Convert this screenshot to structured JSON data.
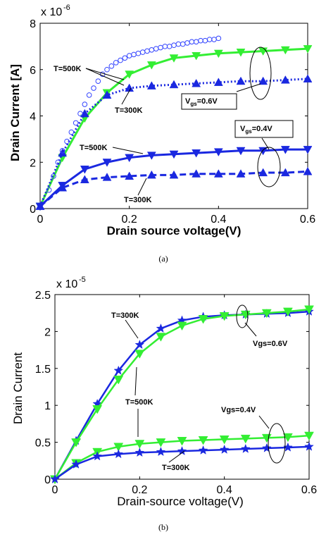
{
  "colors": {
    "green": "#33ee33",
    "blue": "#1a28e0",
    "circle_blue": "#3344ff"
  },
  "chart_data": [
    {
      "type": "line",
      "caption": "(a)",
      "xlabel": "Drain source voltage(V)",
      "ylabel": "Drain Current [A]",
      "y_multiplier": "x 10",
      "y_exponent": "-6",
      "xlim": [
        0,
        0.6
      ],
      "ylim": [
        0,
        8
      ],
      "xticks": [
        "0",
        "0.2",
        "0.4",
        "0.6"
      ],
      "yticks": [
        "0",
        "2",
        "4",
        "6",
        "8"
      ],
      "series": [
        {
          "color": "green",
          "style": "solid",
          "marker": "triangle-down",
          "x": [
            0,
            0.05,
            0.1,
            0.15,
            0.2,
            0.25,
            0.3,
            0.35,
            0.4,
            0.45,
            0.5,
            0.55,
            0.6
          ],
          "y": [
            0.1,
            2.2,
            3.9,
            5.0,
            5.8,
            6.2,
            6.5,
            6.6,
            6.7,
            6.75,
            6.8,
            6.85,
            6.9
          ]
        },
        {
          "color": "blue",
          "style": "dotted",
          "marker": "triangle-up",
          "x": [
            0,
            0.05,
            0.1,
            0.15,
            0.2,
            0.25,
            0.3,
            0.35,
            0.4,
            0.45,
            0.5,
            0.55,
            0.6
          ],
          "y": [
            0.1,
            2.4,
            4.1,
            4.9,
            5.2,
            5.3,
            5.35,
            5.4,
            5.45,
            5.5,
            5.5,
            5.55,
            5.6
          ]
        },
        {
          "color": "blue",
          "style": "solid",
          "marker": "triangle-down",
          "x": [
            0,
            0.05,
            0.1,
            0.15,
            0.2,
            0.25,
            0.3,
            0.35,
            0.4,
            0.45,
            0.5,
            0.55,
            0.6
          ],
          "y": [
            0.1,
            1.0,
            1.7,
            2.0,
            2.2,
            2.3,
            2.35,
            2.4,
            2.45,
            2.5,
            2.5,
            2.55,
            2.55
          ]
        },
        {
          "color": "blue",
          "style": "dashed",
          "marker": "triangle-up",
          "x": [
            0,
            0.05,
            0.1,
            0.15,
            0.2,
            0.25,
            0.3,
            0.35,
            0.4,
            0.45,
            0.5,
            0.55,
            0.6
          ],
          "y": [
            0.1,
            0.9,
            1.25,
            1.35,
            1.4,
            1.45,
            1.45,
            1.5,
            1.5,
            1.5,
            1.55,
            1.55,
            1.6
          ]
        },
        {
          "color": "circle_blue",
          "style": "none",
          "marker": "circle",
          "x": [
            0.02,
            0.03,
            0.04,
            0.05,
            0.06,
            0.07,
            0.08,
            0.09,
            0.1,
            0.11,
            0.12,
            0.13,
            0.14,
            0.15,
            0.16,
            0.17,
            0.18,
            0.19,
            0.2,
            0.21,
            0.22,
            0.23,
            0.24,
            0.25,
            0.26,
            0.27,
            0.28,
            0.29,
            0.3,
            0.31,
            0.32,
            0.33,
            0.34,
            0.35,
            0.36,
            0.37,
            0.38,
            0.39,
            0.4
          ],
          "y": [
            0.8,
            1.4,
            2.0,
            2.5,
            2.9,
            3.3,
            3.7,
            4.1,
            4.5,
            4.9,
            5.2,
            5.5,
            5.8,
            6.0,
            6.15,
            6.3,
            6.4,
            6.5,
            6.6,
            6.65,
            6.7,
            6.75,
            6.8,
            6.85,
            6.9,
            6.95,
            7.0,
            7.0,
            7.05,
            7.1,
            7.1,
            7.15,
            7.2,
            7.2,
            7.25,
            7.25,
            7.3,
            7.3,
            7.35
          ]
        }
      ],
      "annotations": {
        "t500_top": "T=500K",
        "t300_top": "T=300K",
        "vgs06_prefix": "V",
        "vgs06_sub": "gs",
        "vgs06_suffix": "=0.6V",
        "vgs04_prefix": "V",
        "vgs04_sub": "gs",
        "vgs04_suffix": "=0.4V",
        "t500_mid": "T=500K",
        "t300_bot": "T=300K"
      }
    },
    {
      "type": "line",
      "caption": "(b)",
      "xlabel": "Drain-source voltage(V)",
      "ylabel": "Drain Current",
      "y_multiplier": "x 10",
      "y_exponent": "-5",
      "xlim": [
        0,
        0.6
      ],
      "ylim": [
        0,
        2.5
      ],
      "xticks": [
        "0",
        "0.2",
        "0.4",
        "0.6"
      ],
      "yticks": [
        "0",
        "0.5",
        "1",
        "1.5",
        "2",
        "2.5"
      ],
      "series": [
        {
          "color": "blue",
          "style": "solid",
          "marker": "star",
          "x": [
            0,
            0.05,
            0.1,
            0.15,
            0.2,
            0.25,
            0.3,
            0.35,
            0.4,
            0.45,
            0.5,
            0.55,
            0.6
          ],
          "y": [
            0,
            0.52,
            1.02,
            1.47,
            1.82,
            2.04,
            2.15,
            2.2,
            2.22,
            2.23,
            2.24,
            2.25,
            2.27
          ]
        },
        {
          "color": "green",
          "style": "solid",
          "marker": "triangle-down",
          "x": [
            0,
            0.05,
            0.1,
            0.15,
            0.2,
            0.25,
            0.3,
            0.35,
            0.4,
            0.45,
            0.5,
            0.55,
            0.6
          ],
          "y": [
            0,
            0.5,
            0.95,
            1.35,
            1.7,
            1.93,
            2.08,
            2.17,
            2.21,
            2.23,
            2.25,
            2.27,
            2.3
          ]
        },
        {
          "color": "green",
          "style": "solid",
          "marker": "triangle-down",
          "x": [
            0,
            0.05,
            0.1,
            0.15,
            0.2,
            0.25,
            0.3,
            0.35,
            0.4,
            0.45,
            0.5,
            0.55,
            0.6
          ],
          "y": [
            0,
            0.22,
            0.37,
            0.44,
            0.48,
            0.5,
            0.52,
            0.53,
            0.54,
            0.55,
            0.56,
            0.57,
            0.59
          ]
        },
        {
          "color": "blue",
          "style": "solid",
          "marker": "star",
          "x": [
            0,
            0.05,
            0.1,
            0.15,
            0.2,
            0.25,
            0.3,
            0.35,
            0.4,
            0.45,
            0.5,
            0.55,
            0.6
          ],
          "y": [
            0,
            0.2,
            0.31,
            0.34,
            0.36,
            0.37,
            0.38,
            0.39,
            0.4,
            0.41,
            0.42,
            0.43,
            0.44
          ]
        }
      ],
      "annotations": {
        "t300_top": "T=300K",
        "vgs06": "Vgs=0.6V",
        "t500": "T=500K",
        "vgs04": "Vgs=0.4V",
        "t300_bot": "T=300K"
      }
    }
  ]
}
